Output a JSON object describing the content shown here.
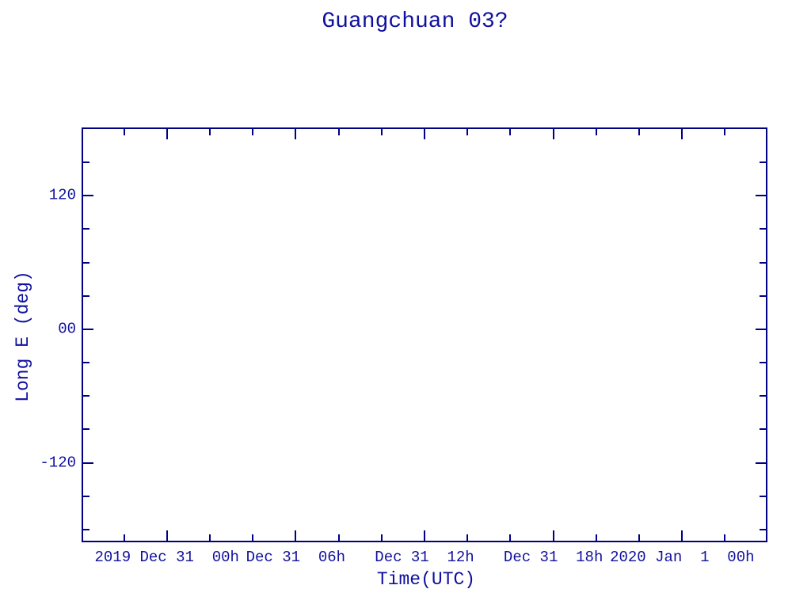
{
  "chart_data": {
    "type": "line",
    "title": "Guangchuan 03?",
    "xlabel": "Time(UTC)",
    "ylabel": "Long E (deg)",
    "x_axis": {
      "unit": "hours relative to 2019 Dec 31 00h UTC",
      "range": [
        -3.9,
        27.9
      ],
      "major_ticks": [
        0,
        6,
        12,
        18,
        24
      ],
      "major_tick_labels": [
        "2019 Dec 31  00h",
        "Dec 31  06h",
        "Dec 31  12h",
        "Dec 31  18h",
        "2020 Jan  1  00h"
      ],
      "minor_ticks": [
        -2,
        2,
        4,
        8,
        10,
        14,
        16,
        20,
        22,
        26
      ],
      "minor_tick_interval_hours": 2
    },
    "y_axis": {
      "unit": "deg",
      "range": [
        -190,
        180
      ],
      "major_ticks": [
        120,
        0,
        -120
      ],
      "major_tick_labels": [
        "120",
        "00",
        "-120"
      ],
      "minor_ticks": [
        150,
        90,
        60,
        30,
        -30,
        -60,
        -90,
        -150,
        -180
      ],
      "minor_tick_interval_deg": 30
    },
    "series": [],
    "plot_area_empty": true,
    "grid": false,
    "legend": null,
    "colors": {
      "line": "#000082",
      "text": "#10109e",
      "background": "#ffffff"
    }
  }
}
